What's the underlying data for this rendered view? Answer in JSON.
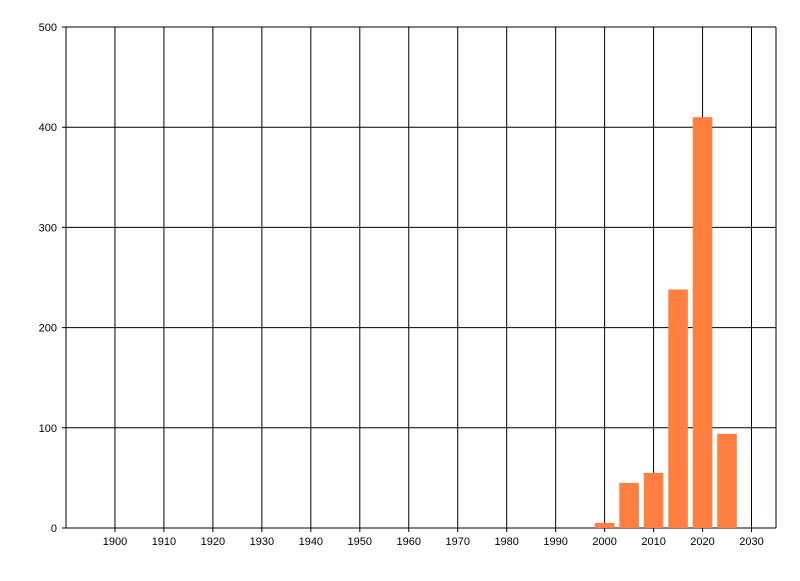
{
  "chart_data": {
    "type": "bar",
    "title": "",
    "xlabel": "",
    "ylabel": "",
    "x": [
      2000,
      2005,
      2010,
      2015,
      2020,
      2025
    ],
    "values": [
      5,
      45,
      55,
      238,
      410,
      94
    ],
    "bar_width_years": 4,
    "xlim": [
      1890,
      2035
    ],
    "ylim": [
      0,
      500
    ],
    "xticks": [
      1900,
      1910,
      1920,
      1930,
      1940,
      1950,
      1960,
      1970,
      1980,
      1990,
      2000,
      2010,
      2020,
      2030
    ],
    "yticks": [
      0,
      100,
      200,
      300,
      400,
      500
    ],
    "grid": true,
    "legend": "none",
    "bar_color": "#FF7F41",
    "grid_color": "#000000"
  }
}
